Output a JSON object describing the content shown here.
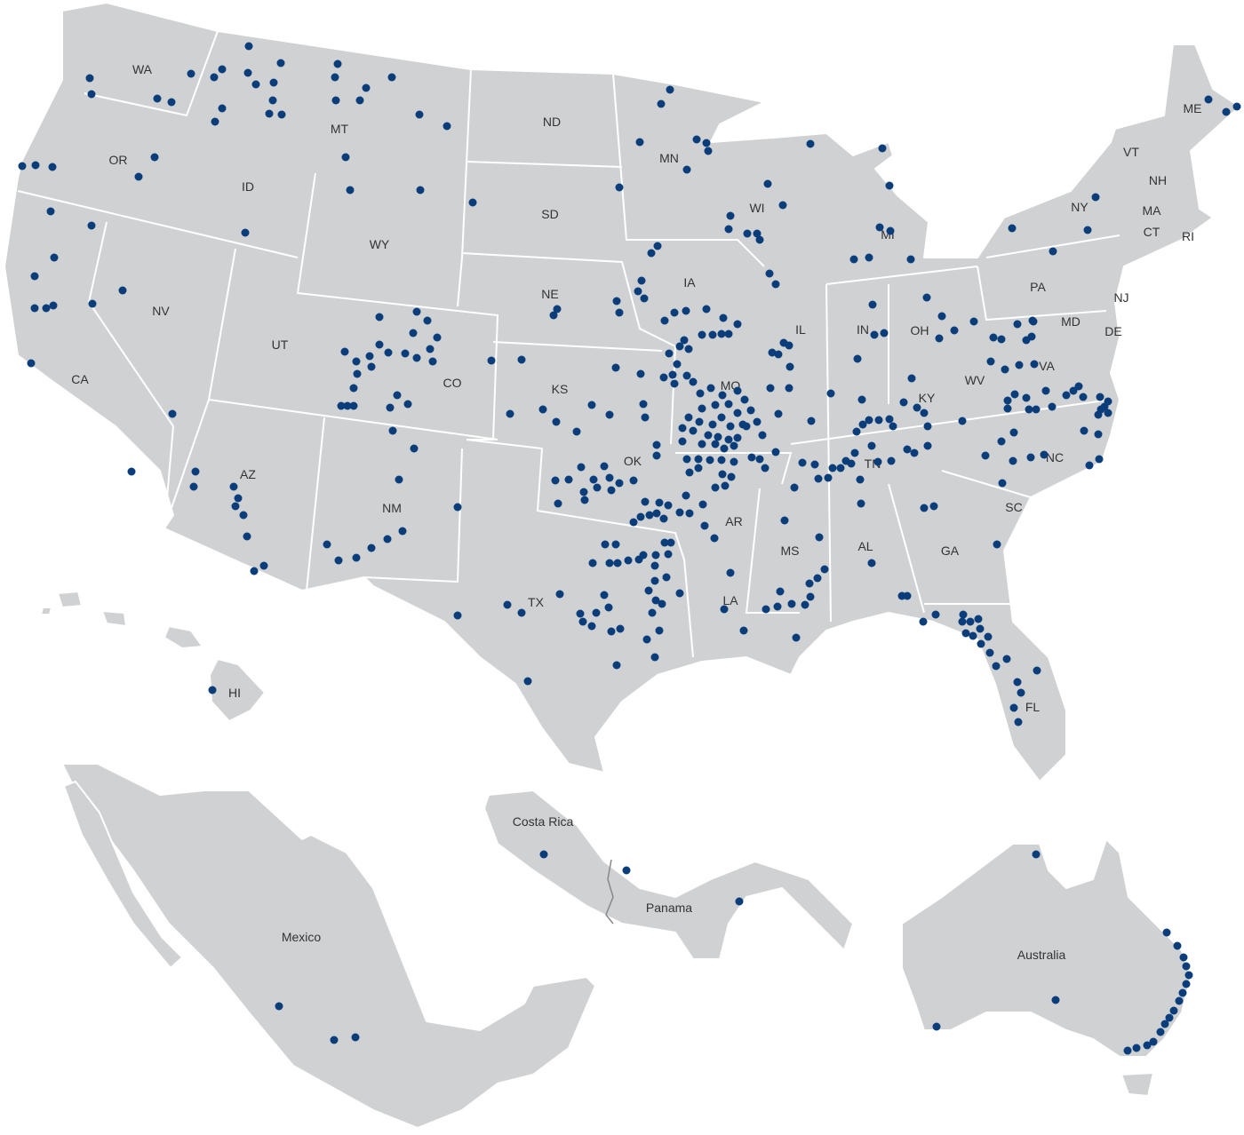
{
  "colors": {
    "land": "#cfd1d3",
    "border": "#ffffff",
    "marker": "#0b3d7a",
    "label": "#333333"
  },
  "marker_icon": "location-dot-icon",
  "regions": {
    "usa": {
      "states": [
        "WA",
        "OR",
        "CA",
        "ID",
        "NV",
        "MT",
        "WY",
        "UT",
        "AZ",
        "CO",
        "NM",
        "ND",
        "SD",
        "NE",
        "KS",
        "OK",
        "TX",
        "MN",
        "IA",
        "MO",
        "AR",
        "LA",
        "WI",
        "IL",
        "MI",
        "IN",
        "OH",
        "KY",
        "TN",
        "MS",
        "AL",
        "GA",
        "FL",
        "SC",
        "NC",
        "VA",
        "WV",
        "PA",
        "NY",
        "VT",
        "NH",
        "ME",
        "MA",
        "CT",
        "RI",
        "NJ",
        "MD",
        "DE",
        "HI"
      ]
    },
    "international": [
      "Mexico",
      "Costa Rica",
      "Panama",
      "Australia"
    ]
  }
}
